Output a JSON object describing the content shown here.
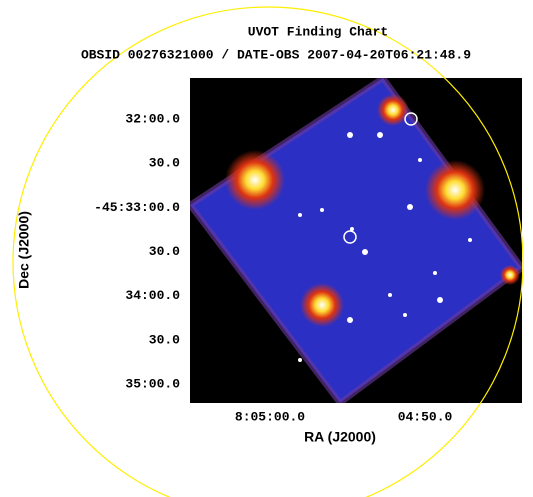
{
  "header": {
    "title": "UVOT Finding Chart",
    "subtitle": "OBSID 00276321000 / DATE-OBS 2007-04-20T06:21:48.9"
  },
  "axes": {
    "x": {
      "label": "RA (J2000)",
      "tick_labels": [
        "8:05:00.0",
        "04:50.0"
      ]
    },
    "y": {
      "label": "Dec (J2000)",
      "tick_labels": [
        "32:00.0",
        "30.0",
        "-45:33:00.0",
        "30.0",
        "34:00.0",
        "30.0",
        "35:00.0"
      ]
    }
  }
}
